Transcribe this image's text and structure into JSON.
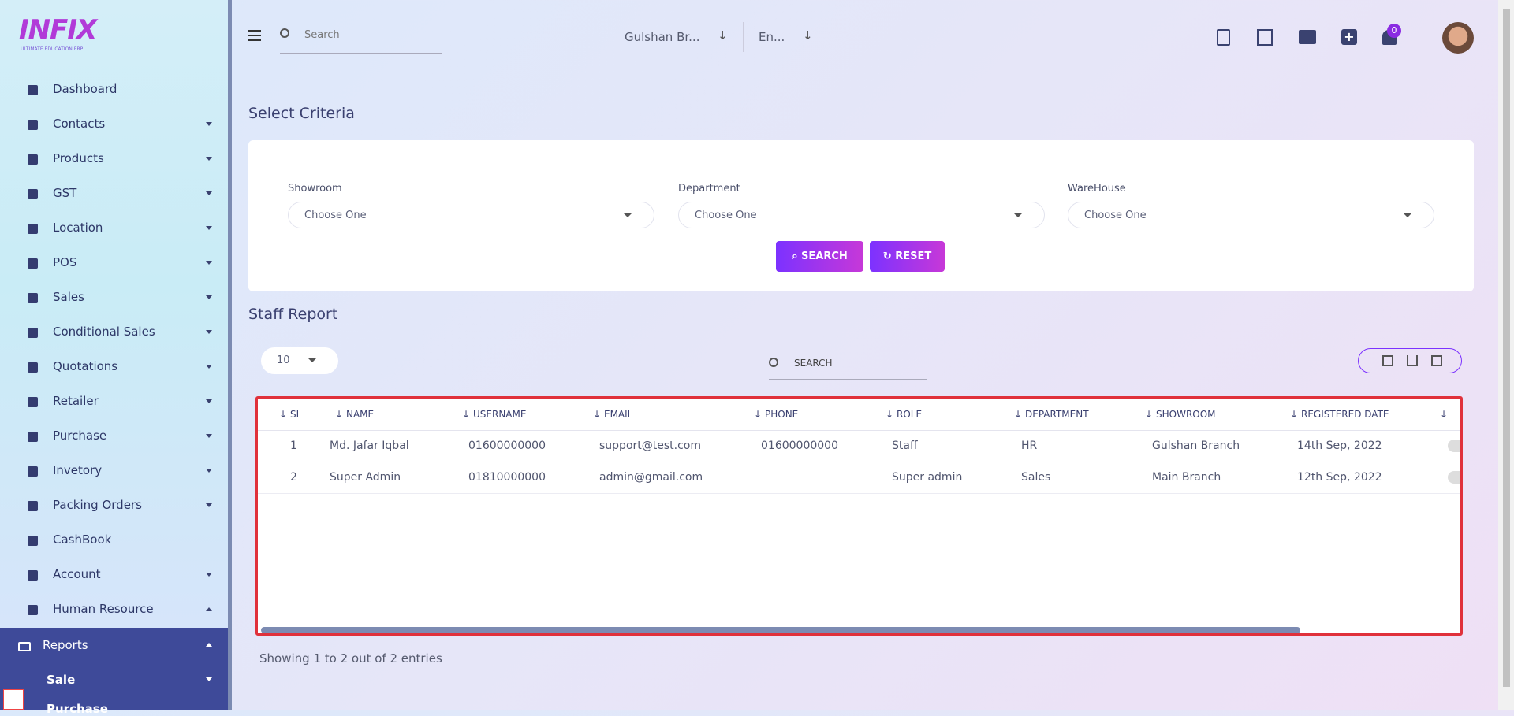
{
  "logo": {
    "title": "INFIX",
    "subtitle": "ULTIMATE EDUCATION ERP"
  },
  "sidebar": {
    "items": [
      {
        "label": "Dashboard",
        "caret": ""
      },
      {
        "label": "Contacts",
        "caret": "down"
      },
      {
        "label": "Products",
        "caret": "down"
      },
      {
        "label": "GST",
        "caret": "down"
      },
      {
        "label": "Location",
        "caret": "down"
      },
      {
        "label": "POS",
        "caret": "down"
      },
      {
        "label": "Sales",
        "caret": "down"
      },
      {
        "label": "Conditional Sales",
        "caret": "down"
      },
      {
        "label": "Quotations",
        "caret": "down"
      },
      {
        "label": "Retailer",
        "caret": "down"
      },
      {
        "label": "Purchase",
        "caret": "down"
      },
      {
        "label": "Invetory",
        "caret": "down"
      },
      {
        "label": "Packing Orders",
        "caret": "down"
      },
      {
        "label": "CashBook",
        "caret": ""
      },
      {
        "label": "Account",
        "caret": "down"
      },
      {
        "label": "Human Resource",
        "caret": "up"
      }
    ],
    "active": {
      "label": "Reports",
      "children": [
        "Sale",
        "Purchase"
      ]
    }
  },
  "header": {
    "search_placeholder": "Search",
    "branch": "Gulshan Br...",
    "language": "En...",
    "notifications": "0"
  },
  "criteria": {
    "title": "Select Criteria",
    "fields": [
      {
        "label": "Showroom",
        "placeholder": "Choose One"
      },
      {
        "label": "Department",
        "placeholder": "Choose One"
      },
      {
        "label": "WareHouse",
        "placeholder": "Choose One"
      }
    ],
    "search_button": "SEARCH",
    "reset_button": "RESET"
  },
  "report": {
    "title": "Staff Report",
    "page_size": "10",
    "search_placeholder": "SEARCH",
    "columns": [
      "SL",
      "NAME",
      "USERNAME",
      "EMAIL",
      "PHONE",
      "ROLE",
      "DEPARTMENT",
      "SHOWROOM",
      "REGISTERED DATE",
      ""
    ],
    "rows": [
      [
        "1",
        "Md. Jafar Iqbal",
        "01600000000",
        "support@test.com",
        "01600000000",
        "Staff",
        "HR",
        "Gulshan Branch",
        "14th Sep, 2022"
      ],
      [
        "2",
        "Super Admin",
        "01810000000",
        "admin@gmail.com",
        "",
        "Super admin",
        "Sales",
        "Main Branch",
        "12th Sep, 2022"
      ]
    ],
    "footer": "Showing 1 to 2 out of 2 entries"
  }
}
